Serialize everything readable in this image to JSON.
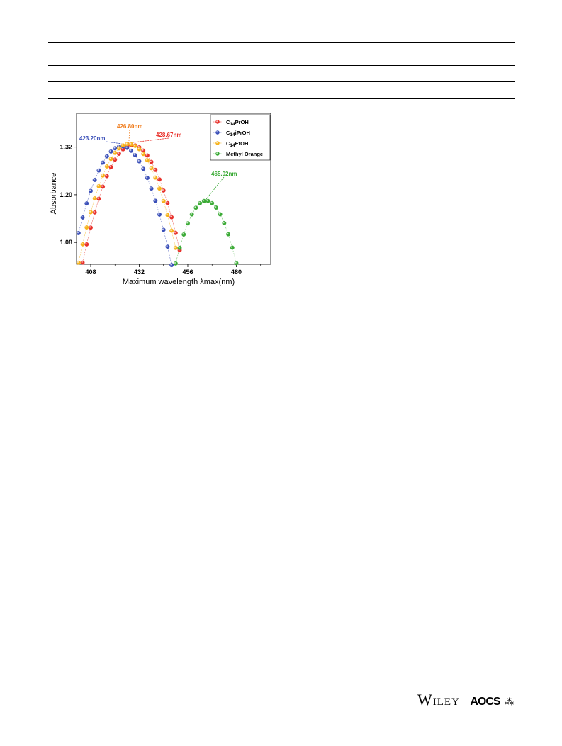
{
  "chart_data": {
    "type": "scatter",
    "xlabel": "Maximum wavelength λmax(nm)",
    "ylabel": "Absorbance",
    "xlim": [
      401,
      497
    ],
    "ylim": [
      1.025,
      1.405
    ],
    "xticks": [
      408,
      432,
      456,
      480
    ],
    "yticks": [
      1.08,
      1.2,
      1.32
    ],
    "xtick_labels": [
      "408",
      "432",
      "456",
      "480"
    ],
    "ytick_labels": [
      "1.08",
      "1.20",
      "1.32"
    ],
    "grid": false,
    "legend_position": "top-right",
    "series": [
      {
        "name": "C14PrOH",
        "color": "#e8302a",
        "peak_x": 428.67,
        "peak_y": 1.325,
        "width": 24,
        "x": [
          404,
          474
        ],
        "step": 2
      },
      {
        "name": "C14iPrOH",
        "color": "#3a4fb8",
        "peak_x": 423.2,
        "peak_y": 1.322,
        "width": 24,
        "x": [
          402,
          470
        ],
        "step": 2
      },
      {
        "name": "C14EtOH",
        "color": "#f6b21a",
        "peak_x": 426.8,
        "peak_y": 1.328,
        "width": 24,
        "x": [
          402,
          472
        ],
        "step": 2
      },
      {
        "name": "Methyl Orange",
        "color": "#3aaa35",
        "peak_x": 465.02,
        "peak_y": 1.185,
        "width": 20,
        "x": [
          430,
          496
        ],
        "step": 2
      }
    ],
    "annotations": [
      {
        "text": "423.20nm",
        "color": "#3a4fb8",
        "x": 423.2
      },
      {
        "text": "426.80nm",
        "color": "#f07c1c",
        "x": 426.8
      },
      {
        "text": "428.67nm",
        "color": "#e8302a",
        "x": 428.67
      },
      {
        "text": "465.02nm",
        "color": "#3aaa35",
        "x": 465.02
      }
    ]
  },
  "footer": {
    "publisher": "Wiley",
    "society": "AOCS",
    "society_mark": "⁂"
  }
}
